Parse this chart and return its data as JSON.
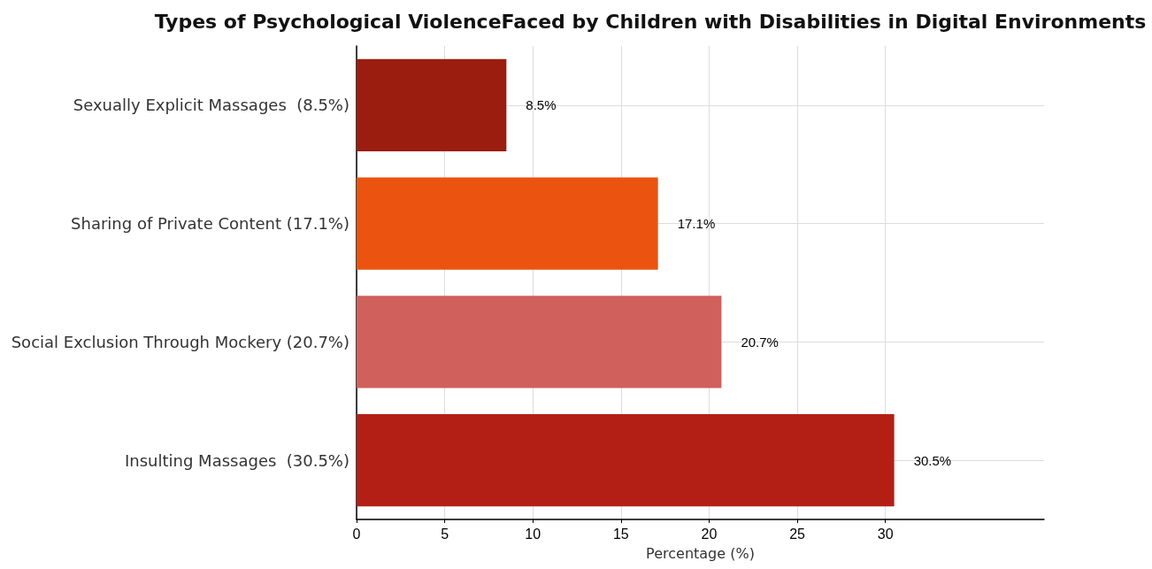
{
  "chart_data": {
    "type": "bar",
    "orientation": "horizontal",
    "title": "Types of Psychological ViolenceFaced by Children with Disabilities in Digital Environments",
    "xlabel": "Percentage (%)",
    "categories": [
      "Sexually Explicit Massages  (8.5%)",
      "Sharing of Private Content (17.1%)",
      "Social Exclusion Through Mockery (20.7%)",
      "Insulting Massages  (30.5%)"
    ],
    "values": [
      8.5,
      17.1,
      20.7,
      30.5
    ],
    "colors": [
      "#9a1d0f",
      "#ea5410",
      "#d0605c",
      "#b31f15"
    ],
    "value_labels": [
      "8.5%",
      "17.1%",
      "20.7%",
      "30.5%"
    ],
    "xlim": [
      0,
      39
    ],
    "xticks": [
      0,
      5,
      10,
      15,
      20,
      25,
      30
    ],
    "grid": true
  }
}
